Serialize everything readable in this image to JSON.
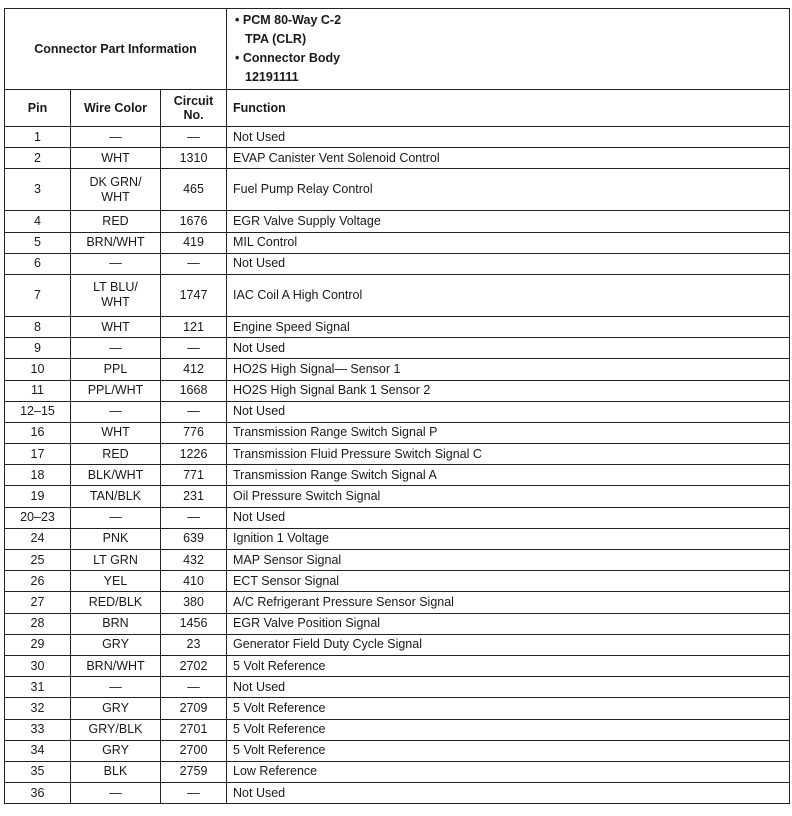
{
  "header": {
    "connector_label": "Connector Part Information",
    "info": [
      "• PCM 80-Way C-2",
      "TPA (CLR)",
      "• Connector Body",
      "12191111"
    ]
  },
  "columns": {
    "pin": "Pin",
    "wire": "Wire Color",
    "circuit": "Circuit No.",
    "function": "Function"
  },
  "rows": [
    {
      "pin": "1",
      "wire": "—",
      "circuit": "—",
      "function": "Not Used"
    },
    {
      "pin": "2",
      "wire": "WHT",
      "circuit": "1310",
      "function": "EVAP Canister Vent Solenoid Control"
    },
    {
      "pin": "3",
      "wire": "DK GRN/ WHT",
      "circuit": "465",
      "function": "Fuel Pump Relay Control"
    },
    {
      "pin": "4",
      "wire": "RED",
      "circuit": "1676",
      "function": "EGR Valve Supply Voltage"
    },
    {
      "pin": "5",
      "wire": "BRN/WHT",
      "circuit": "419",
      "function": "MIL Control"
    },
    {
      "pin": "6",
      "wire": "—",
      "circuit": "—",
      "function": "Not Used"
    },
    {
      "pin": "7",
      "wire": "LT BLU/ WHT",
      "circuit": "1747",
      "function": "IAC Coil A High Control"
    },
    {
      "pin": "8",
      "wire": "WHT",
      "circuit": "121",
      "function": "Engine Speed Signal"
    },
    {
      "pin": "9",
      "wire": "—",
      "circuit": "—",
      "function": "Not Used"
    },
    {
      "pin": "10",
      "wire": "PPL",
      "circuit": "412",
      "function": "HO2S High Signal— Sensor 1"
    },
    {
      "pin": "11",
      "wire": "PPL/WHT",
      "circuit": "1668",
      "function": "HO2S High Signal Bank 1 Sensor 2"
    },
    {
      "pin": "12–15",
      "wire": "—",
      "circuit": "—",
      "function": "Not Used"
    },
    {
      "pin": "16",
      "wire": "WHT",
      "circuit": "776",
      "function": "Transmission Range Switch Signal P"
    },
    {
      "pin": "17",
      "wire": "RED",
      "circuit": "1226",
      "function": "Transmission Fluid Pressure Switch Signal C"
    },
    {
      "pin": "18",
      "wire": "BLK/WHT",
      "circuit": "771",
      "function": "Transmission Range Switch Signal A"
    },
    {
      "pin": "19",
      "wire": "TAN/BLK",
      "circuit": "231",
      "function": "Oil Pressure Switch Signal"
    },
    {
      "pin": "20–23",
      "wire": "—",
      "circuit": "—",
      "function": "Not Used"
    },
    {
      "pin": "24",
      "wire": "PNK",
      "circuit": "639",
      "function": "Ignition 1 Voltage"
    },
    {
      "pin": "25",
      "wire": "LT GRN",
      "circuit": "432",
      "function": "MAP Sensor Signal"
    },
    {
      "pin": "26",
      "wire": "YEL",
      "circuit": "410",
      "function": "ECT Sensor Signal"
    },
    {
      "pin": "27",
      "wire": "RED/BLK",
      "circuit": "380",
      "function": "A/C Refrigerant Pressure Sensor Signal"
    },
    {
      "pin": "28",
      "wire": "BRN",
      "circuit": "1456",
      "function": "EGR Valve Position Signal"
    },
    {
      "pin": "29",
      "wire": "GRY",
      "circuit": "23",
      "function": "Generator Field Duty Cycle Signal"
    },
    {
      "pin": "30",
      "wire": "BRN/WHT",
      "circuit": "2702",
      "function": "5 Volt Reference"
    },
    {
      "pin": "31",
      "wire": "—",
      "circuit": "—",
      "function": "Not Used"
    },
    {
      "pin": "32",
      "wire": "GRY",
      "circuit": "2709",
      "function": "5 Volt Reference"
    },
    {
      "pin": "33",
      "wire": "GRY/BLK",
      "circuit": "2701",
      "function": "5 Volt Reference"
    },
    {
      "pin": "34",
      "wire": "GRY",
      "circuit": "2700",
      "function": "5 Volt Reference"
    },
    {
      "pin": "35",
      "wire": "BLK",
      "circuit": "2759",
      "function": "Low Reference"
    },
    {
      "pin": "36",
      "wire": "—",
      "circuit": "—",
      "function": "Not Used"
    }
  ]
}
